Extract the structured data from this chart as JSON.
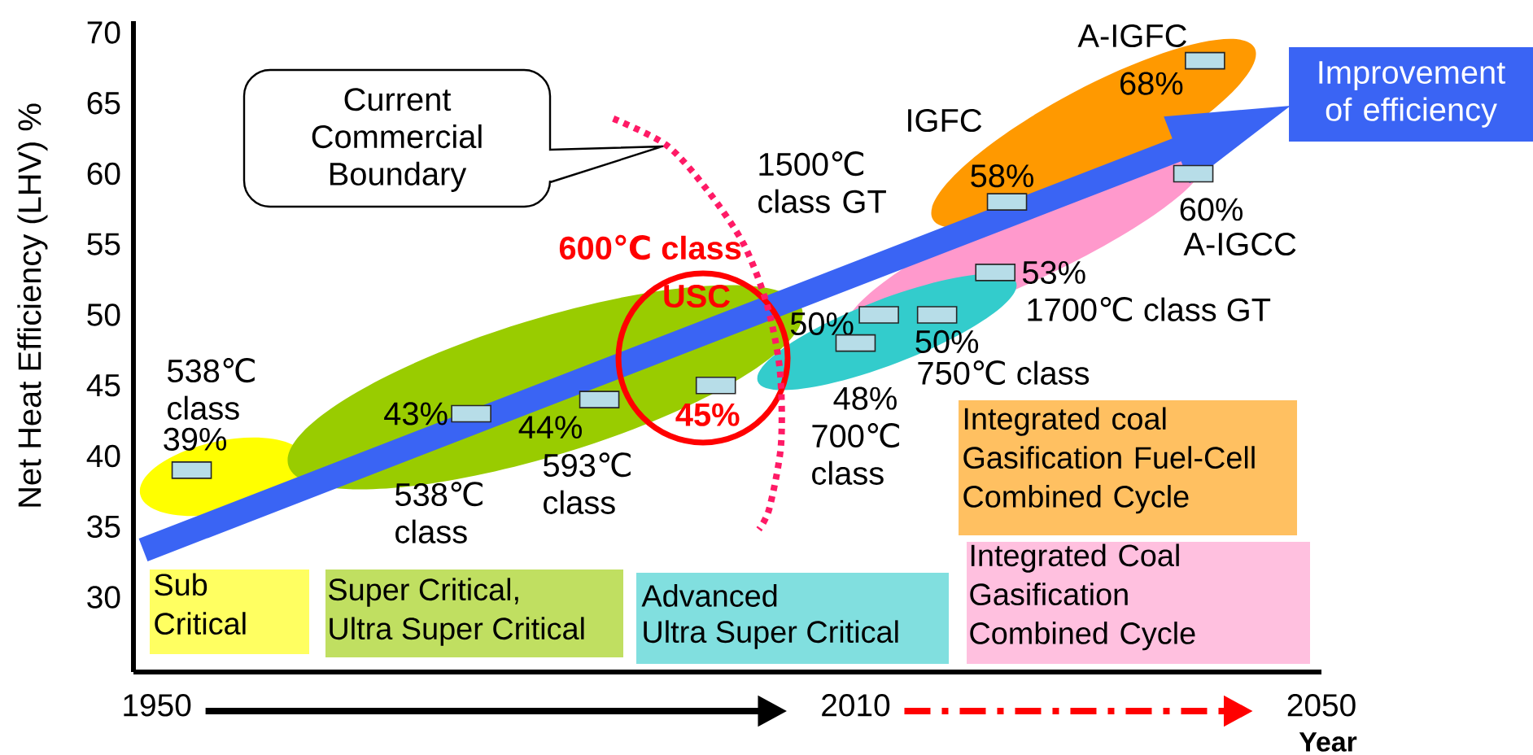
{
  "chart_data": {
    "type": "scatter",
    "ylabel": "Net Heat Efficiency (LHV) %",
    "xlabel": "Year",
    "xlim": [
      1948,
      2050
    ],
    "xticks": [
      1950,
      2010,
      2050
    ],
    "ylim": [
      24.7,
      70.8
    ],
    "yticks": [
      30,
      35,
      40,
      45,
      50,
      55,
      60,
      65,
      70
    ],
    "marker": "square",
    "series": [
      {
        "color": "#b7dde8",
        "x": [
          1953,
          1977,
          1988,
          1998,
          2010,
          2012,
          2017,
          2022,
          2023,
          2039,
          2040
        ],
        "values": [
          39,
          43,
          44,
          45,
          48,
          50,
          50,
          53,
          58,
          60,
          68
        ],
        "value_labels": [
          "39%",
          "43%",
          "44%",
          "45%",
          "48%",
          "50%",
          "50%",
          "53%",
          "58%",
          "60%",
          "68%"
        ]
      },
      {
        "type": "line",
        "name": "Current Commercial Boundary",
        "color": "#ff1a66",
        "line_style": "dotted",
        "marker": "none",
        "x": [
          1989.2,
          1993.8,
          1997.3,
          2000.4,
          2002.4,
          2003.5,
          2003.6,
          2002.6,
          2001.7
        ],
        "values": [
          63.9,
          62.0,
          58.8,
          55.0,
          50.7,
          46.1,
          40.8,
          36.3,
          34.8
        ]
      }
    ],
    "annotations": [
      "538℃ class",
      "538℃ class",
      "593℃ class",
      "600℃ class",
      "USC",
      "700℃ class",
      "750℃ class",
      "1500℃ class GT",
      "1700℃ class GT",
      "A-IGCC",
      "IGFC",
      "A-IGFC",
      "Improvement of efficiency",
      "Sub Critical",
      "Super Critical,",
      "Ultra Super Critical",
      "Advanced",
      "Ultra Super Critical",
      "Integrated coal Gasification Fuel-Cell Combined Cycle",
      "Integrated Coal Gasification Combined Cycle"
    ]
  }
}
